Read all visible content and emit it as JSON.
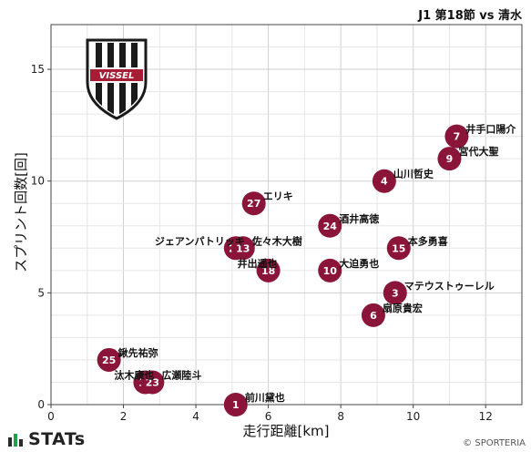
{
  "header": {
    "match_title": "J1 第18節 vs 清水"
  },
  "brand": {
    "stats_text": "STATs",
    "copyright": "© SPORTERIA",
    "team_logo_text": "VISSEL"
  },
  "colors": {
    "point": "#8a1538",
    "logo_red": "#a51e36",
    "logo_black": "#1a1a1a"
  },
  "chart_data": {
    "type": "scatter",
    "xlabel": "走行距離[km]",
    "ylabel": "スプリント回数[回]",
    "xlim": [
      0,
      13
    ],
    "ylim": [
      0,
      17
    ],
    "xticks": [
      0,
      2,
      4,
      6,
      8,
      10,
      12
    ],
    "yticks": [
      0,
      5,
      10,
      15
    ],
    "grid": true,
    "points": [
      {
        "num": "7",
        "name": "井手口陽介",
        "x": 11.2,
        "y": 12
      },
      {
        "num": "9",
        "name": "宮代大聖",
        "x": 11.0,
        "y": 11
      },
      {
        "num": "4",
        "name": "山川哲史",
        "x": 9.2,
        "y": 10
      },
      {
        "num": "27",
        "name": "エリキ",
        "x": 5.6,
        "y": 9
      },
      {
        "num": "24",
        "name": "酒井高徳",
        "x": 7.7,
        "y": 8
      },
      {
        "num": "20",
        "name": "ジェアンパトリッキ",
        "x": 5.1,
        "y": 7
      },
      {
        "num": "13",
        "name": "佐々木大樹",
        "x": 5.3,
        "y": 7
      },
      {
        "num": "15",
        "name": "本多勇喜",
        "x": 9.6,
        "y": 7
      },
      {
        "num": "18",
        "name": "井出遥也",
        "x": 6.0,
        "y": 6
      },
      {
        "num": "10",
        "name": "大迫勇也",
        "x": 7.7,
        "y": 6
      },
      {
        "num": "3",
        "name": "マテウストゥーレル",
        "x": 9.5,
        "y": 5
      },
      {
        "num": "6",
        "name": "扇原貴宏",
        "x": 8.9,
        "y": 4
      },
      {
        "num": "25",
        "name": "鍬先祐弥",
        "x": 1.6,
        "y": 2
      },
      {
        "num": "12",
        "name": "汰木康也",
        "x": 2.6,
        "y": 1
      },
      {
        "num": "23",
        "name": "広瀬陸斗",
        "x": 2.8,
        "y": 1
      },
      {
        "num": "1",
        "name": "前川黛也",
        "x": 5.1,
        "y": 0
      }
    ]
  }
}
